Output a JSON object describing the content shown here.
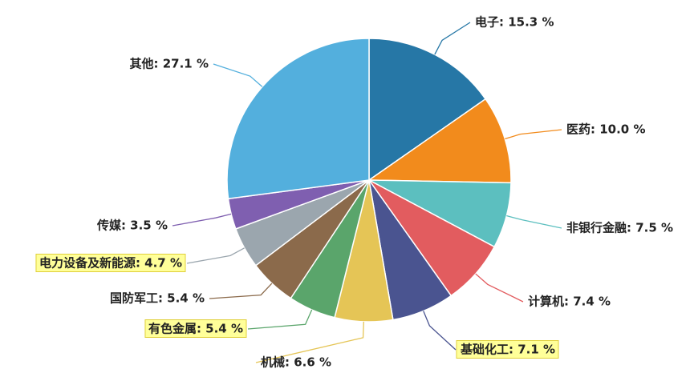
{
  "chart_data": {
    "type": "pie",
    "values": [
      15.3,
      10.0,
      7.5,
      7.4,
      7.1,
      6.6,
      5.4,
      5.4,
      4.7,
      3.5,
      27.1
    ],
    "value_labels": [
      "电子: 15.3 %",
      "医药: 10.0 %",
      "非银行金融: 7.5 %",
      "计算机: 7.4 %",
      "基础化工: 7.1 %",
      "机械: 6.6 %",
      "有色金属: 5.4 %",
      "国防军工: 5.4 %",
      "电力设备及新能源: 4.7 %",
      "传媒: 3.5 %",
      "其他: 27.1 %"
    ],
    "colors": [
      "#2677a6",
      "#f28b1c",
      "#5cbfbf",
      "#e25c5f",
      "#4a5490",
      "#e5c556",
      "#5aa56b",
      "#8b6a4b",
      "#9ba6ae",
      "#7f5fb0",
      "#53afdd"
    ],
    "highlighted": [
      false,
      false,
      false,
      false,
      true,
      false,
      true,
      false,
      true,
      false,
      false
    ]
  }
}
